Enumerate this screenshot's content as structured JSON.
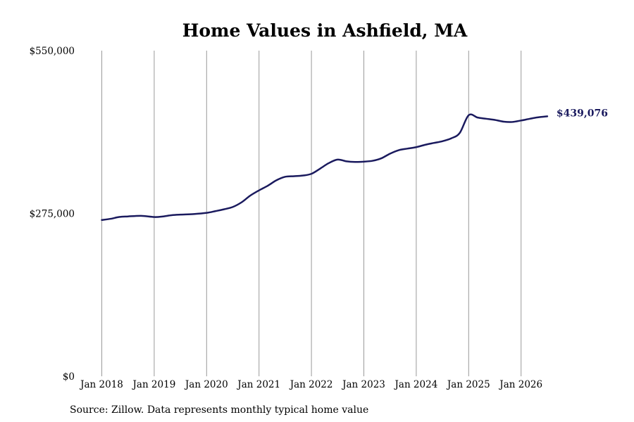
{
  "chart_data": {
    "type": "line",
    "title": "Home Values in Ashfield, MA",
    "source": "Source: Zillow. Data represents monthly typical home value",
    "y_ticks": [
      "$0",
      "$275,000",
      "$550,000"
    ],
    "ylim": [
      0,
      550000
    ],
    "x_ticks": [
      "Jan 2018",
      "Jan 2019",
      "Jan 2020",
      "Jan 2021",
      "Jan 2022",
      "Jan 2023",
      "Jan 2024",
      "Jan 2025",
      "Jan 2026"
    ],
    "x_tick_values": [
      2018,
      2019,
      2020,
      2021,
      2022,
      2023,
      2024,
      2025,
      2026
    ],
    "xlim": [
      2018,
      2026.5
    ],
    "grid": "vertical",
    "line_color": "#1a1a5e",
    "end_label": "$439,076",
    "series": [
      {
        "x": [
          2018.0,
          2018.17,
          2018.33,
          2018.5,
          2018.75,
          2019.0,
          2019.17,
          2019.33,
          2019.5,
          2019.75,
          2020.0,
          2020.17,
          2020.33,
          2020.5,
          2020.67,
          2020.83,
          2021.0,
          2021.17,
          2021.33,
          2021.5,
          2021.67,
          2021.83,
          2022.0,
          2022.17,
          2022.33,
          2022.5,
          2022.67,
          2022.83,
          2023.0,
          2023.17,
          2023.33,
          2023.5,
          2023.67,
          2023.83,
          2024.0,
          2024.17,
          2024.33,
          2024.5,
          2024.67,
          2024.83,
          2025.0,
          2025.17,
          2025.33,
          2025.5,
          2025.67,
          2025.83,
          2026.0,
          2026.17,
          2026.33,
          2026.5
        ],
        "values": [
          264000,
          266000,
          269000,
          270000,
          271000,
          269000,
          270000,
          272000,
          273000,
          274000,
          276000,
          279000,
          282000,
          286000,
          294000,
          305000,
          314000,
          322000,
          331000,
          337000,
          338000,
          339000,
          342000,
          351000,
          360000,
          366000,
          363000,
          362000,
          362500,
          364000,
          368000,
          376000,
          382000,
          384500,
          387000,
          391000,
          394000,
          397000,
          402000,
          411000,
          441000,
          437000,
          435000,
          433000,
          430000,
          429500,
          432000,
          435000,
          437500,
          439076
        ]
      }
    ]
  }
}
